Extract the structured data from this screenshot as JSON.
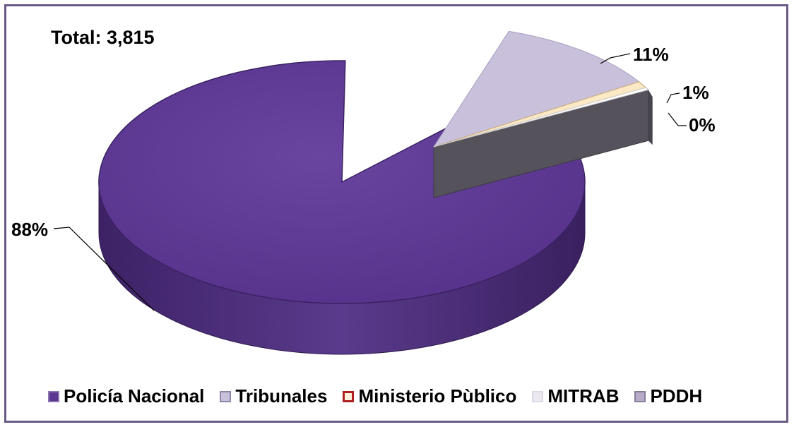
{
  "chart_data": {
    "type": "pie",
    "style": "3d-exploded",
    "total_label": "Total: 3,815",
    "categories": [
      "Policía Nacional",
      "Tribunales",
      "Ministerio Pùblico",
      "MITRAB",
      "PDDH"
    ],
    "values": [
      88,
      11,
      1,
      0,
      0
    ],
    "data_labels": [
      "88%",
      "11%",
      "1%",
      "0%",
      ""
    ],
    "colors": [
      "#5b3590",
      "#c9c1dc",
      "#8b1a1a",
      "#fbe8c4",
      "#9a8fb2"
    ],
    "legend_position": "bottom"
  }
}
